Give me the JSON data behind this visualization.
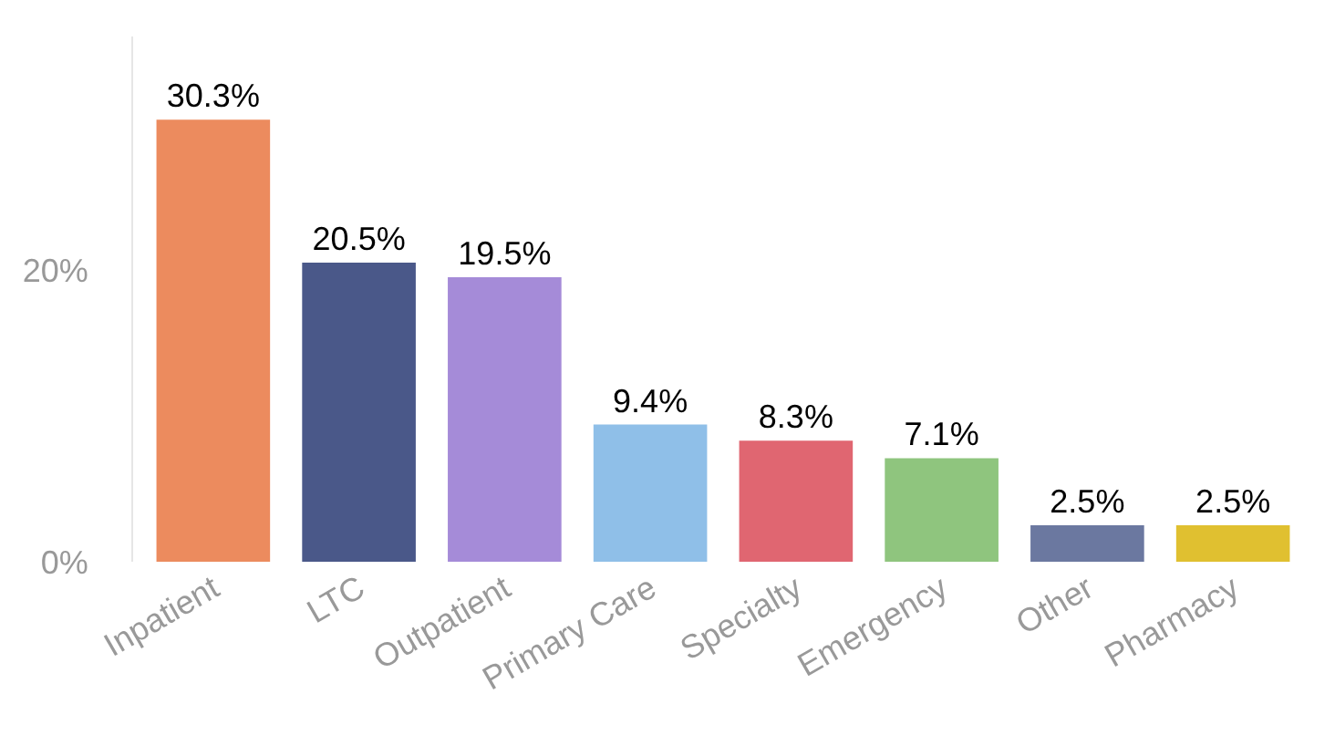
{
  "chart_data": {
    "type": "bar",
    "categories": [
      "Inpatient",
      "LTC",
      "Outpatient",
      "Primary Care",
      "Specialty",
      "Emergency",
      "Other",
      "Pharmacy"
    ],
    "values": [
      30.3,
      20.5,
      19.5,
      9.4,
      8.3,
      7.1,
      2.5,
      2.5
    ],
    "colors": [
      "#ec8b5e",
      "#4a5889",
      "#a58bd8",
      "#8fbfe8",
      "#e06671",
      "#8fc57e",
      "#6b78a0",
      "#e0c030"
    ],
    "value_labels": [
      "30.3%",
      "20.5%",
      "19.5%",
      "9.4%",
      "8.3%",
      "7.1%",
      "2.5%",
      "2.5%"
    ],
    "ylim": [
      0,
      36
    ],
    "yticks": [
      {
        "value": 0,
        "label": "0%"
      },
      {
        "value": 20,
        "label": "20%"
      }
    ]
  }
}
